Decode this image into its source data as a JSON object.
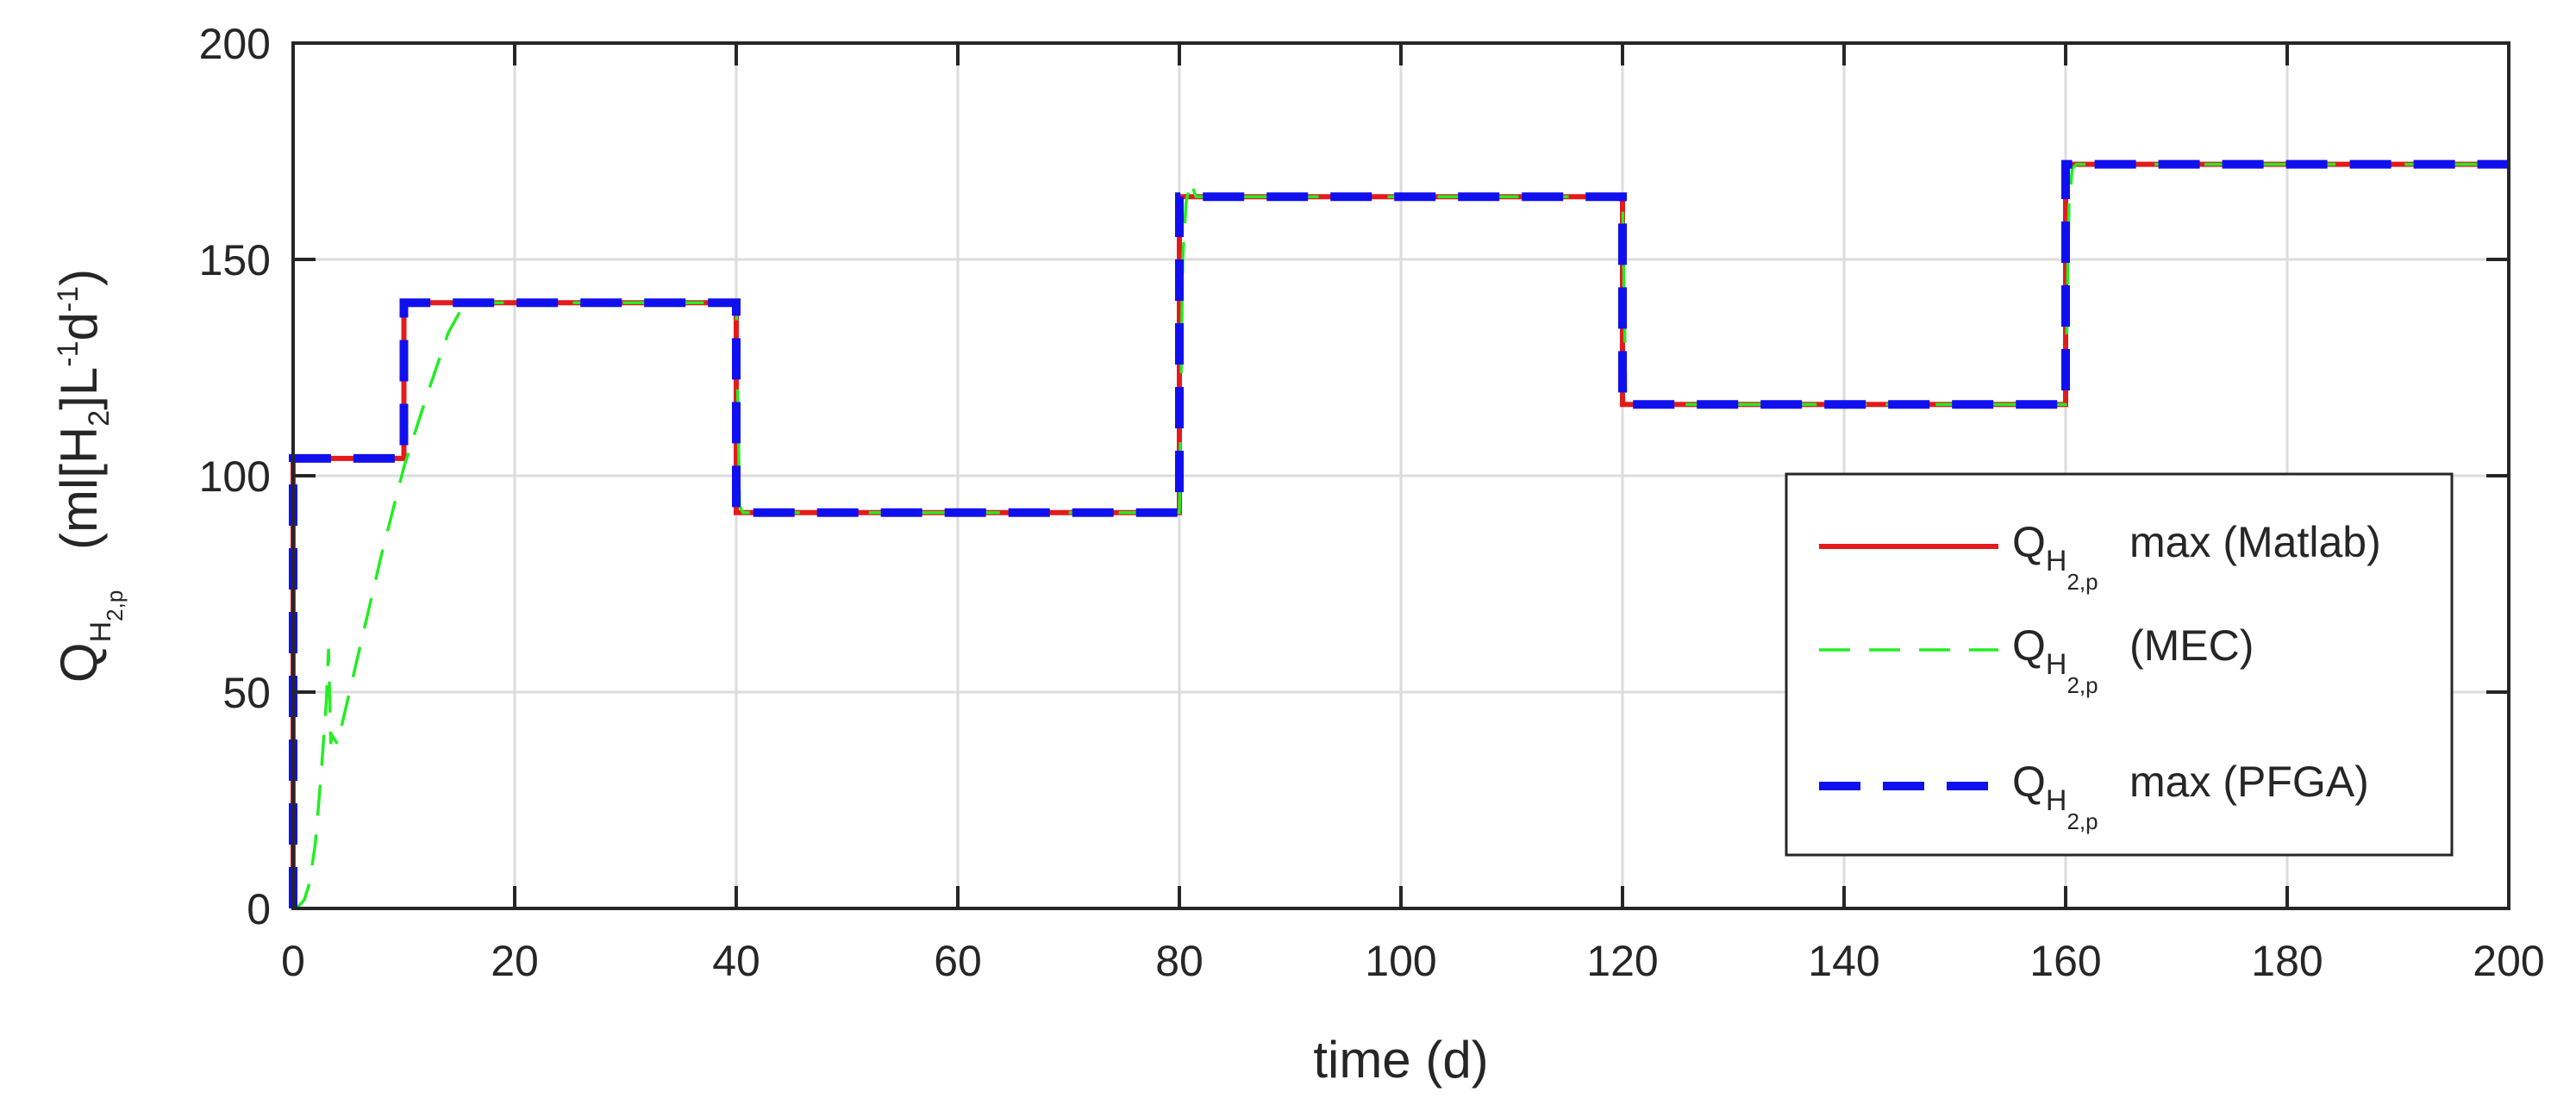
{
  "chart_data": {
    "type": "line",
    "xlabel": "time (d)",
    "ylabel": {
      "base": "Q",
      "sub_main": "H",
      "sub_index": "2,p",
      "units_open": "(ml[H",
      "units_sub": "2",
      "units_mid": "]L",
      "units_exp1": "-1",
      "units_d": "d",
      "units_exp2": "-1",
      "units_close": ")"
    },
    "xlim": [
      0,
      200
    ],
    "ylim": [
      0,
      200
    ],
    "xticks": [
      0,
      20,
      40,
      60,
      80,
      100,
      120,
      140,
      160,
      180,
      200
    ],
    "yticks": [
      0,
      50,
      100,
      150,
      200
    ],
    "grid": true,
    "legend_position": "lower-right",
    "colors": {
      "matlab": "#e41a1c",
      "mec": "#22ee22",
      "pfga": "#1010ee",
      "axis": "#262626",
      "grid": "#dcdcdc"
    },
    "series": [
      {
        "key": "matlab",
        "label": {
          "base": "Q",
          "sub_main": "H",
          "sub_index": "2,p",
          "suffix": "max (Matlab)"
        },
        "style": "solid",
        "x": [
          0,
          0,
          10,
          10,
          40,
          40,
          80,
          80,
          120,
          120,
          160,
          160,
          200
        ],
        "y": [
          0,
          104,
          104,
          140,
          140,
          91.5,
          91.5,
          164.5,
          164.5,
          116.5,
          116.5,
          172,
          172
        ]
      },
      {
        "key": "mec",
        "label": {
          "base": "Q",
          "sub_main": "H",
          "sub_index": "2,p",
          "suffix": "(MEC)"
        },
        "style": "dashed",
        "x": [
          0,
          0.5,
          1,
          1.5,
          2,
          2.5,
          3,
          3.2,
          3.4,
          3.5,
          4,
          6,
          8,
          10,
          12,
          14,
          15.5,
          16,
          40,
          40.3,
          40.6,
          41,
          80,
          80.3,
          80.6,
          81,
          81.5,
          120,
          120.3,
          120.6,
          121,
          160,
          160.3,
          160.6,
          161,
          200
        ],
        "y": [
          0,
          0.5,
          2,
          6,
          15,
          30,
          48,
          60,
          38,
          40,
          38,
          60,
          82,
          102,
          118,
          133,
          140,
          140,
          140,
          93,
          91.5,
          91.5,
          91.5,
          150,
          163,
          168,
          164.5,
          164.5,
          118,
          116.5,
          116.5,
          116.5,
          163,
          171,
          172,
          172
        ]
      },
      {
        "key": "pfga",
        "label": {
          "base": "Q",
          "sub_main": "H",
          "sub_index": "2,p",
          "suffix": "max (PFGA)"
        },
        "style": "dashed-thick",
        "x": [
          0,
          0,
          10,
          10,
          40,
          40,
          80,
          80,
          120,
          120,
          160,
          160,
          200
        ],
        "y": [
          0,
          104,
          104,
          140,
          140,
          91.5,
          91.5,
          164.5,
          164.5,
          116.5,
          116.5,
          172,
          172
        ]
      }
    ]
  }
}
